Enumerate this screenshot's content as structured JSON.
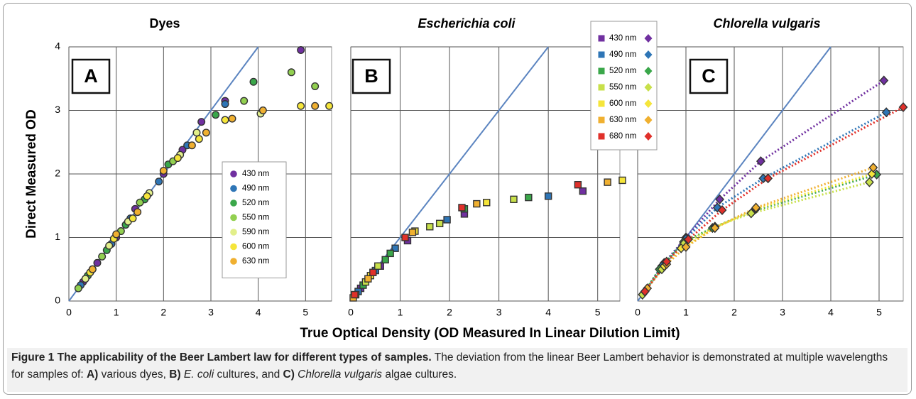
{
  "chart_data": [
    {
      "type": "scatter",
      "title": "Dyes",
      "title_style": "bold",
      "panel_label": "A",
      "marker": "circle",
      "legend": "center-right",
      "xlim": [
        0,
        5.55
      ],
      "ylim": [
        0,
        4
      ],
      "xticks": [
        0,
        1,
        2,
        3,
        4,
        5
      ],
      "yticks": [
        0,
        1,
        2,
        3,
        4
      ],
      "ytick_labels": true,
      "grid": true,
      "diagonal": true,
      "trend_lines": false,
      "series": [
        {
          "name": "430 nm",
          "color": "#7030a0",
          "x": [
            0.3,
            0.6,
            1.0,
            1.4,
            2.0,
            2.4,
            2.8,
            3.3,
            4.9
          ],
          "values": [
            0.3,
            0.6,
            1.0,
            1.45,
            2.0,
            2.38,
            2.82,
            3.15,
            3.95
          ]
        },
        {
          "name": "490 nm",
          "color": "#2e75b6",
          "x": [
            0.25,
            0.5,
            0.9,
            1.3,
            1.9,
            2.5,
            3.3
          ],
          "values": [
            0.25,
            0.5,
            0.9,
            1.3,
            1.88,
            2.45,
            3.1
          ]
        },
        {
          "name": "520 nm",
          "color": "#3aa74a",
          "x": [
            0.4,
            0.8,
            1.2,
            1.6,
            2.1,
            3.1,
            3.9
          ],
          "values": [
            0.4,
            0.8,
            1.2,
            1.6,
            2.15,
            2.93,
            3.45
          ]
        },
        {
          "name": "550 nm",
          "color": "#92d050",
          "x": [
            0.2,
            0.7,
            1.1,
            1.5,
            2.2,
            3.7,
            4.7,
            5.2
          ],
          "values": [
            0.2,
            0.7,
            1.1,
            1.55,
            2.2,
            3.15,
            3.6,
            3.38
          ]
        },
        {
          "name": "590 nm",
          "color": "#e2ef8a",
          "x": [
            0.35,
            0.85,
            1.25,
            1.7,
            2.35,
            2.7,
            4.05
          ],
          "values": [
            0.35,
            0.87,
            1.25,
            1.7,
            2.3,
            2.65,
            2.95
          ]
        },
        {
          "name": "600 nm",
          "color": "#f5e53a",
          "x": [
            0.45,
            0.95,
            1.35,
            1.65,
            2.3,
            2.75,
            3.3,
            4.9,
            5.5
          ],
          "values": [
            0.45,
            0.98,
            1.3,
            1.65,
            2.25,
            2.55,
            2.85,
            3.07,
            3.07
          ]
        },
        {
          "name": "630 nm",
          "color": "#f0b030",
          "x": [
            0.5,
            1.0,
            1.45,
            2.0,
            2.6,
            2.9,
            3.45,
            4.1,
            5.2
          ],
          "values": [
            0.5,
            1.05,
            1.4,
            2.05,
            2.45,
            2.65,
            2.87,
            3.0,
            3.07
          ]
        }
      ]
    },
    {
      "type": "scatter",
      "title": "Escherichia coli",
      "title_style": "bold-italic",
      "panel_label": "B",
      "marker": "square",
      "legend": "none",
      "xlim": [
        0,
        5.45
      ],
      "ylim": [
        0,
        4
      ],
      "xticks": [
        0,
        1,
        2,
        3,
        4,
        5
      ],
      "yticks": [
        0,
        1,
        2,
        3,
        4
      ],
      "ytick_labels": false,
      "grid": true,
      "diagonal": true,
      "trend_lines": false,
      "series": [
        {
          "name": "430 nm",
          "color": "#7030a0",
          "x": [
            0.2,
            0.6,
            1.15,
            2.3,
            4.7
          ],
          "values": [
            0.2,
            0.55,
            0.95,
            1.37,
            1.73
          ]
        },
        {
          "name": "490 nm",
          "color": "#2e75b6",
          "x": [
            0.15,
            0.5,
            0.9,
            1.95,
            4.0
          ],
          "values": [
            0.15,
            0.48,
            0.83,
            1.28,
            1.65
          ]
        },
        {
          "name": "520 nm",
          "color": "#3aa74a",
          "x": [
            0.25,
            0.7,
            0.8,
            2.3,
            3.6
          ],
          "values": [
            0.25,
            0.65,
            0.75,
            1.45,
            1.63
          ]
        },
        {
          "name": "550 nm",
          "color": "#c8e04a",
          "x": [
            0.3,
            0.55,
            1.6,
            1.8,
            3.3
          ],
          "values": [
            0.3,
            0.55,
            1.17,
            1.22,
            1.6
          ]
        },
        {
          "name": "600 nm",
          "color": "#f5e53a",
          "x": [
            0.1,
            0.4,
            1.3,
            2.75,
            5.5
          ],
          "values": [
            0.1,
            0.4,
            1.1,
            1.55,
            1.9
          ]
        },
        {
          "name": "630 nm",
          "color": "#f0b030",
          "x": [
            0.05,
            0.35,
            1.25,
            2.55,
            5.2
          ],
          "values": [
            0.05,
            0.35,
            1.08,
            1.53,
            1.87
          ]
        },
        {
          "name": "680 nm",
          "color": "#e0302a",
          "x": [
            0.08,
            0.45,
            1.1,
            2.25,
            4.6
          ],
          "values": [
            0.1,
            0.45,
            1.0,
            1.47,
            1.83
          ]
        }
      ]
    },
    {
      "type": "scatter",
      "title": "Chlorella vulgaris",
      "title_style": "bold-italic",
      "panel_label": "C",
      "marker": "diamond",
      "legend": "top-left-outside",
      "xlim": [
        0,
        5.5
      ],
      "ylim": [
        0,
        4
      ],
      "xticks": [
        0,
        1,
        2,
        3,
        4,
        5
      ],
      "yticks": [
        0,
        1,
        2,
        3,
        4
      ],
      "ytick_labels": false,
      "grid": true,
      "diagonal": true,
      "trend_lines": true,
      "series": [
        {
          "name": "430 nm",
          "color": "#7030a0",
          "x": [
            0.15,
            0.55,
            1.0,
            1.7,
            2.55,
            5.1
          ],
          "values": [
            0.15,
            0.6,
            1.0,
            1.6,
            2.2,
            3.47
          ]
        },
        {
          "name": "490 nm",
          "color": "#2e75b6",
          "x": [
            0.15,
            0.5,
            1.0,
            1.65,
            2.6,
            5.15
          ],
          "values": [
            0.15,
            0.55,
            0.98,
            1.47,
            1.93,
            2.97
          ]
        },
        {
          "name": "520 nm",
          "color": "#3aa74a",
          "x": [
            0.12,
            0.45,
            0.95,
            1.55,
            2.4,
            4.95
          ],
          "values": [
            0.12,
            0.5,
            0.93,
            1.15,
            1.42,
            1.99
          ]
        },
        {
          "name": "550 nm",
          "color": "#c8e04a",
          "x": [
            0.1,
            0.5,
            0.95,
            1.6,
            2.35,
            4.8
          ],
          "values": [
            0.1,
            0.5,
            0.9,
            1.17,
            1.38,
            1.87
          ]
        },
        {
          "name": "600 nm",
          "color": "#f5e53a",
          "x": [
            0.15,
            0.55,
            0.9,
            1.6,
            2.45,
            4.85
          ],
          "values": [
            0.15,
            0.55,
            0.83,
            1.15,
            1.45,
            2.0
          ]
        },
        {
          "name": "630 nm",
          "color": "#f0b030",
          "x": [
            0.2,
            0.6,
            1.0,
            1.6,
            2.45,
            4.88
          ],
          "values": [
            0.2,
            0.58,
            0.85,
            1.15,
            1.47,
            2.1
          ]
        },
        {
          "name": "680 nm",
          "color": "#e0302a",
          "x": [
            0.15,
            0.6,
            1.05,
            1.75,
            2.7,
            5.5
          ],
          "values": [
            0.15,
            0.62,
            0.97,
            1.43,
            1.93,
            3.05
          ]
        }
      ]
    }
  ],
  "axis_labels": {
    "y": "Direct Measured OD",
    "x": "True Optical Density  (OD Measured In Linear Dilution Limit)"
  },
  "caption": [
    {
      "text": "Figure 1 The applicability of the Beer Lambert law for different types of samples.",
      "style": "bold"
    },
    {
      "text": " The deviation from the linear Beer Lambert behavior is demonstrated at multiple wavelengths for samples of: ",
      "style": "normal"
    },
    {
      "text": "A)",
      "style": "bold"
    },
    {
      "text": " various dyes, ",
      "style": "normal"
    },
    {
      "text": "B)",
      "style": "bold"
    },
    {
      "text": " E. coli",
      "style": "italic"
    },
    {
      "text": " cultures, and ",
      "style": "normal"
    },
    {
      "text": "C)",
      "style": "bold"
    },
    {
      "text": " Chlorella vulgaris",
      "style": "italic"
    },
    {
      "text": " algae cultures.",
      "style": "normal"
    }
  ]
}
